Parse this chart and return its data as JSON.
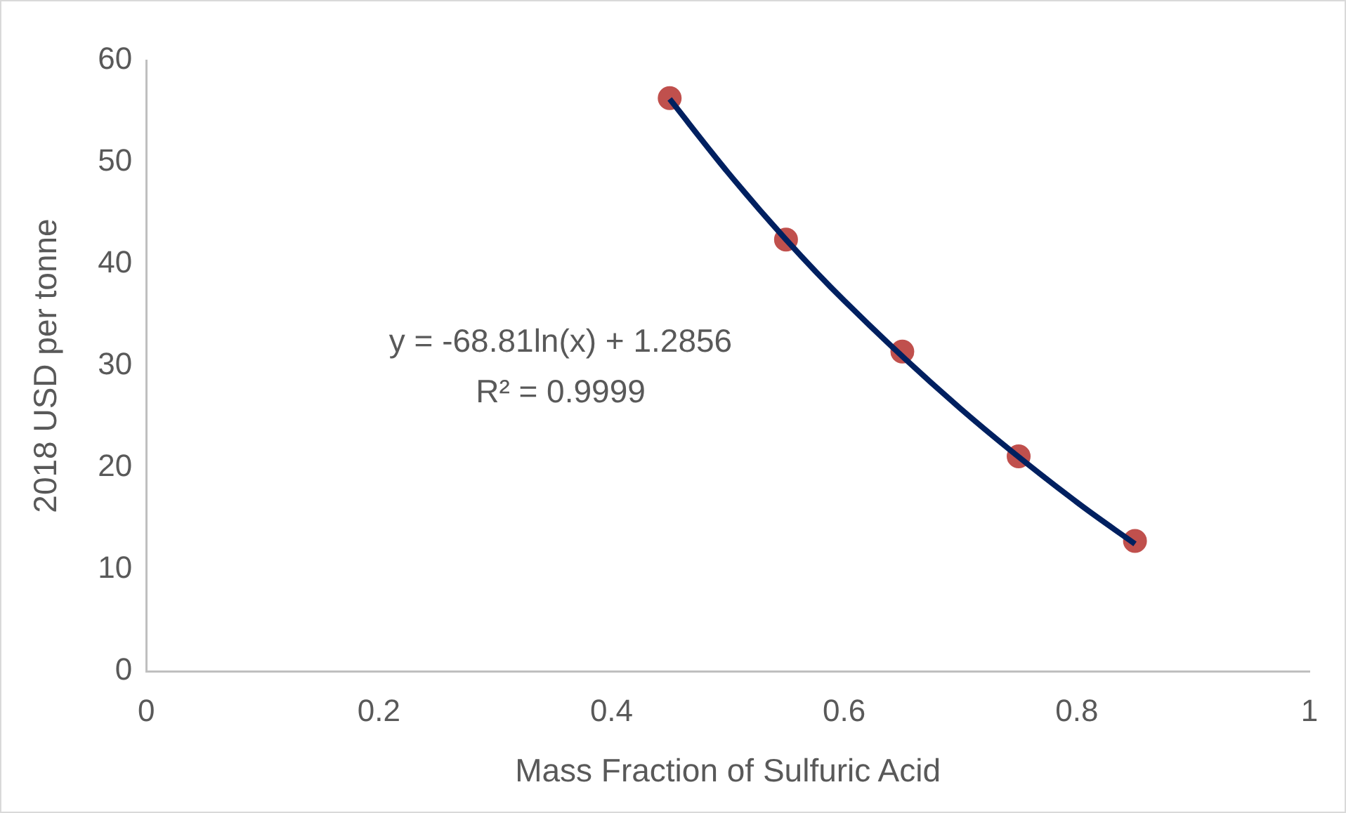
{
  "chart_data": {
    "type": "scatter",
    "xlabel": "Mass Fraction of Sulfuric Acid",
    "ylabel": "2018 USD per tonne",
    "xlim": [
      0,
      1
    ],
    "xticks": [
      0,
      0.2,
      0.4,
      0.6,
      0.8,
      1
    ],
    "ylim": [
      0,
      60
    ],
    "yticks": [
      0,
      10,
      20,
      30,
      40,
      50,
      60
    ],
    "series": [
      {
        "color": "#c0504d",
        "marker": "circle",
        "x": [
          0.45,
          0.55,
          0.65,
          0.75,
          0.85
        ],
        "values": [
          56.3,
          42.4,
          31.4,
          21.1,
          12.8
        ]
      },
      {
        "type": "line",
        "color": "#002060",
        "marker": "none",
        "x": [
          0.45,
          0.5,
          0.55,
          0.6,
          0.7,
          0.8,
          0.85
        ],
        "values": [
          56.2,
          49.0,
          42.4,
          36.4,
          25.8,
          16.6,
          12.5
        ]
      }
    ],
    "annotations": [
      "y = -68.81ln(x) + 1.2856",
      "R² = 0.9999"
    ],
    "grid": false,
    "legend": false
  }
}
